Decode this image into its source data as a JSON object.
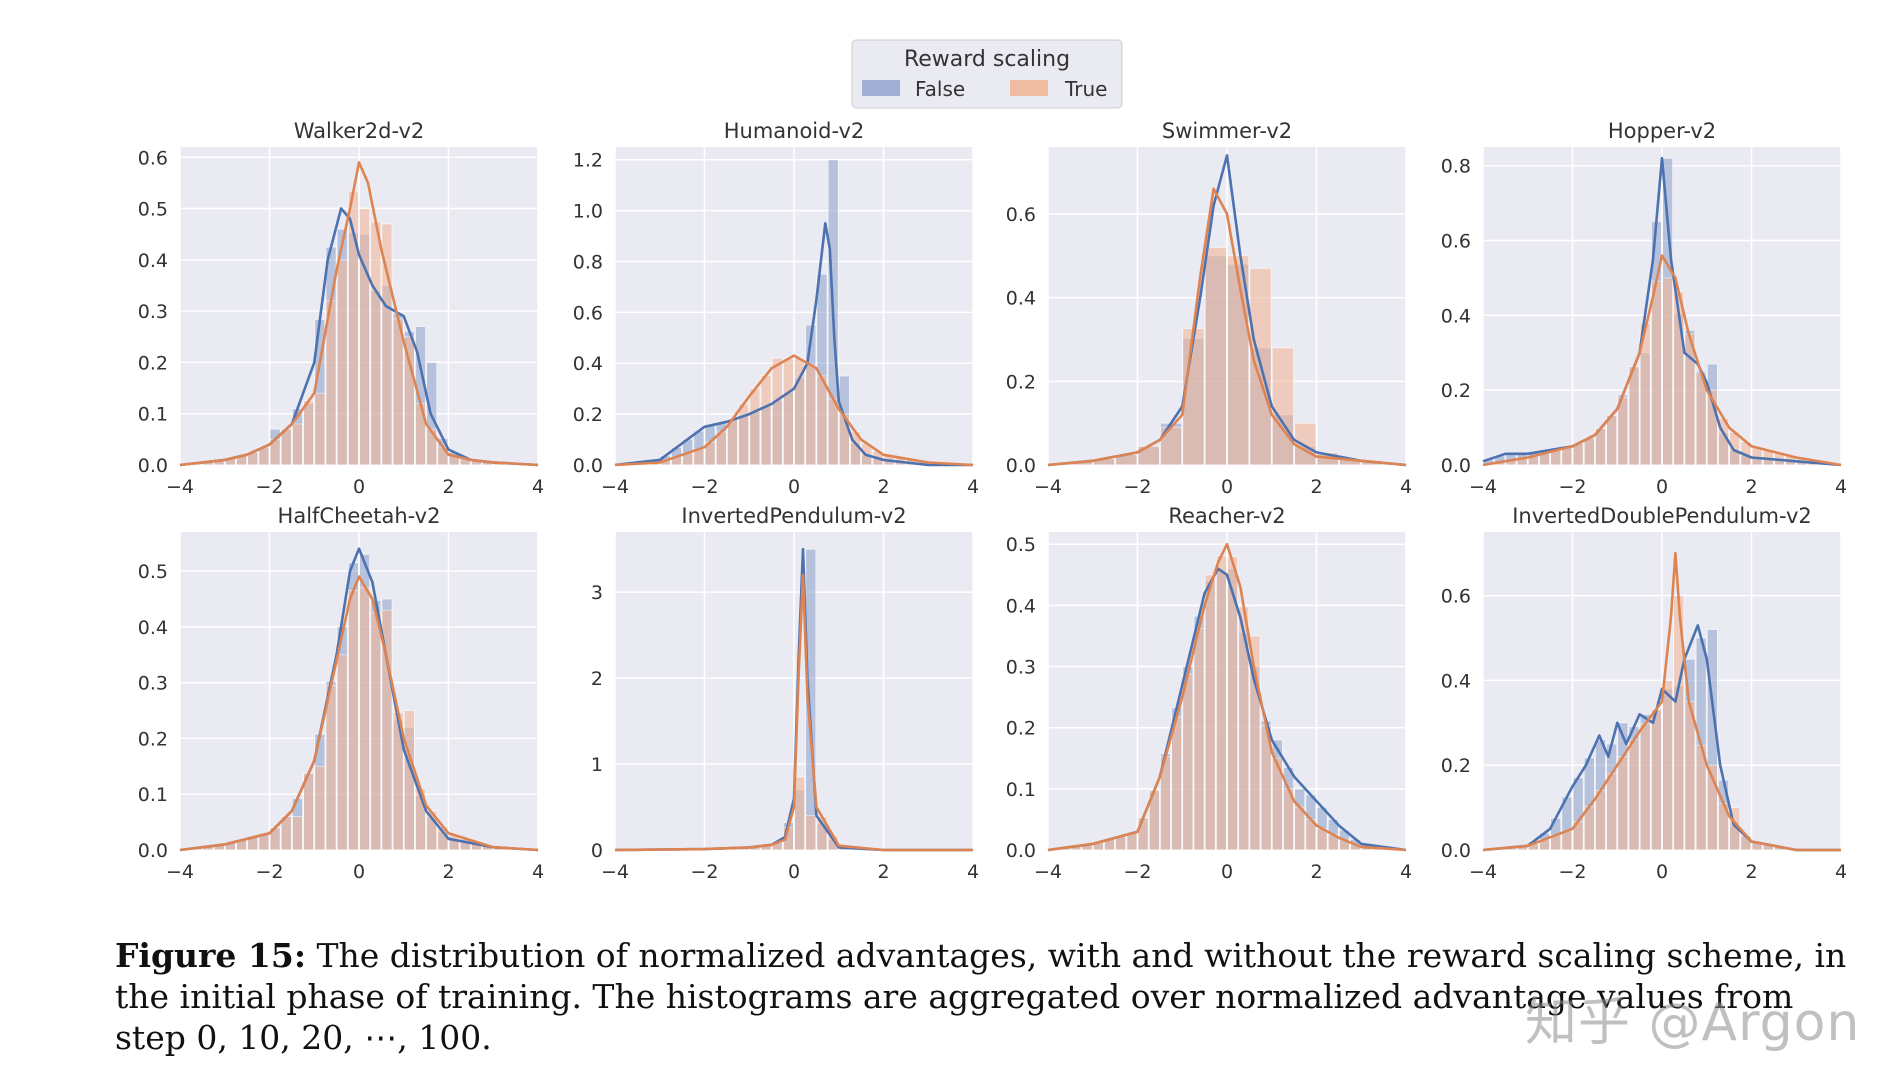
{
  "legend": {
    "title": "Reward scaling",
    "entries": [
      "False",
      "True"
    ]
  },
  "colors": {
    "false_bar": "#8da0cb",
    "false_line": "#4c72b0",
    "true_bar": "#f1b89a",
    "true_line": "#dd8452",
    "panel_bg": "#eaeaf2"
  },
  "caption": {
    "label": "Figure 15:",
    "text": "The distribution of normalized advantages, with and without the reward scaling scheme, in the initial phase of training. The histograms are aggregated over normalized advantage values from step 0, 10, 20, ⋯, 100."
  },
  "watermark": "知乎 @Argon",
  "chart_data": [
    {
      "type": "histogram+kde",
      "title": "Walker2d-v2",
      "xlim": [
        -4,
        4
      ],
      "ylim": [
        0,
        0.62
      ],
      "xticks": [
        -4,
        -2,
        0,
        2,
        4
      ],
      "yticks": [
        0.0,
        0.1,
        0.2,
        0.3,
        0.4,
        0.5,
        0.6
      ],
      "bin_width": 0.25,
      "series": [
        {
          "name": "False",
          "kde_x": [
            -4,
            -3,
            -2.5,
            -2,
            -1.5,
            -1,
            -0.7,
            -0.4,
            -0.2,
            0,
            0.3,
            0.6,
            1,
            1.3,
            1.6,
            2,
            2.5,
            3,
            4
          ],
          "kde_y": [
            0,
            0.01,
            0.02,
            0.04,
            0.08,
            0.2,
            0.4,
            0.5,
            0.48,
            0.41,
            0.35,
            0.31,
            0.29,
            0.22,
            0.1,
            0.03,
            0.01,
            0.005,
            0
          ],
          "bin_x": [
            -2,
            -1.25,
            -0.5,
            0,
            0.5,
            1.25,
            1.5
          ],
          "bin_y": [
            0.07,
            0.12,
            0.46,
            0.45,
            0.35,
            0.27,
            0.2
          ]
        },
        {
          "name": "True",
          "kde_x": [
            -4,
            -3,
            -2.5,
            -2,
            -1.5,
            -1,
            -0.5,
            -0.2,
            0,
            0.2,
            0.5,
            1,
            1.5,
            2,
            2.5,
            3,
            4
          ],
          "kde_y": [
            0,
            0.01,
            0.02,
            0.04,
            0.08,
            0.14,
            0.38,
            0.5,
            0.59,
            0.55,
            0.42,
            0.24,
            0.08,
            0.02,
            0.01,
            0.005,
            0
          ],
          "bin_x": [
            -1.5,
            -1,
            -0.5,
            0,
            0.5,
            1,
            1.5
          ],
          "bin_y": [
            0.08,
            0.14,
            0.4,
            0.5,
            0.47,
            0.25,
            0.07
          ]
        }
      ]
    },
    {
      "type": "histogram+kde",
      "title": "Humanoid-v2",
      "xlim": [
        -4,
        4
      ],
      "ylim": [
        0,
        1.25
      ],
      "xticks": [
        -4,
        -2,
        0,
        2,
        4
      ],
      "yticks": [
        0.0,
        0.2,
        0.4,
        0.6,
        0.8,
        1.0,
        1.2
      ],
      "bin_width": 0.25,
      "series": [
        {
          "name": "False",
          "kde_x": [
            -4,
            -3,
            -2,
            -1.5,
            -1,
            -0.5,
            0,
            0.3,
            0.5,
            0.7,
            0.8,
            0.9,
            1,
            1.3,
            1.6,
            2,
            3,
            4
          ],
          "kde_y": [
            0,
            0.02,
            0.15,
            0.17,
            0.2,
            0.24,
            0.3,
            0.4,
            0.65,
            0.95,
            0.85,
            0.5,
            0.25,
            0.1,
            0.04,
            0.02,
            0,
            0
          ],
          "bin_x": [
            0.7,
            0.5,
            0.25,
            1
          ],
          "bin_y": [
            1.2,
            0.75,
            0.55,
            0.35
          ]
        },
        {
          "name": "True",
          "kde_x": [
            -4,
            -3,
            -2,
            -1.5,
            -1,
            -0.5,
            0,
            0.5,
            1,
            1.5,
            2,
            3,
            4
          ],
          "kde_y": [
            0,
            0.01,
            0.07,
            0.15,
            0.27,
            0.38,
            0.43,
            0.38,
            0.22,
            0.1,
            0.04,
            0.01,
            0
          ],
          "bin_x": [
            -1,
            -0.5,
            0,
            0.5,
            1
          ],
          "bin_y": [
            0.3,
            0.42,
            0.42,
            0.35,
            0.2
          ]
        }
      ]
    },
    {
      "type": "histogram+kde",
      "title": "Swimmer-v2",
      "xlim": [
        -4,
        4
      ],
      "ylim": [
        0,
        0.76
      ],
      "xticks": [
        -4,
        -2,
        0,
        2,
        4
      ],
      "yticks": [
        0.0,
        0.2,
        0.4,
        0.6
      ],
      "bin_width": 0.5,
      "series": [
        {
          "name": "False",
          "kde_x": [
            -4,
            -3,
            -2,
            -1.5,
            -1,
            -0.6,
            -0.3,
            0,
            0.3,
            0.6,
            1,
            1.5,
            2,
            3,
            4
          ],
          "kde_y": [
            0,
            0.01,
            0.03,
            0.06,
            0.14,
            0.4,
            0.62,
            0.74,
            0.5,
            0.3,
            0.14,
            0.06,
            0.03,
            0.01,
            0
          ],
          "bin_x": [
            -0.5,
            0,
            0.5,
            1
          ],
          "bin_y": [
            0.5,
            0.48,
            0.28,
            0.12
          ]
        },
        {
          "name": "True",
          "kde_x": [
            -4,
            -3,
            -2,
            -1.5,
            -1,
            -0.6,
            -0.3,
            0,
            0.3,
            0.6,
            1,
            1.5,
            2,
            3,
            4
          ],
          "kde_y": [
            0,
            0.01,
            0.03,
            0.06,
            0.12,
            0.45,
            0.66,
            0.6,
            0.42,
            0.25,
            0.12,
            0.05,
            0.02,
            0.01,
            0
          ],
          "bin_x": [
            -0.5,
            0,
            0.5,
            1,
            1.5,
            2
          ],
          "bin_y": [
            0.52,
            0.5,
            0.47,
            0.28,
            0.1,
            0.03
          ]
        }
      ]
    },
    {
      "type": "histogram+kde",
      "title": "Hopper-v2",
      "xlim": [
        -4,
        4
      ],
      "ylim": [
        0,
        0.85
      ],
      "xticks": [
        -4,
        -2,
        0,
        2,
        4
      ],
      "yticks": [
        0.0,
        0.2,
        0.4,
        0.6,
        0.8
      ],
      "bin_width": 0.25,
      "series": [
        {
          "name": "False",
          "kde_x": [
            -4,
            -3.5,
            -3,
            -2.5,
            -2,
            -1.5,
            -1,
            -0.5,
            -0.2,
            0,
            0.2,
            0.5,
            0.8,
            1,
            1.3,
            1.6,
            2,
            3,
            4
          ],
          "kde_y": [
            0.01,
            0.03,
            0.03,
            0.04,
            0.05,
            0.08,
            0.15,
            0.3,
            0.55,
            0.82,
            0.55,
            0.3,
            0.27,
            0.22,
            0.1,
            0.04,
            0.02,
            0.01,
            0
          ],
          "bin_x": [
            0,
            0.5,
            1,
            -0.5
          ],
          "bin_y": [
            0.82,
            0.36,
            0.27,
            0.3
          ]
        },
        {
          "name": "True",
          "kde_x": [
            -4,
            -3,
            -2,
            -1.5,
            -1,
            -0.5,
            -0.2,
            0,
            0.3,
            0.6,
            1,
            1.5,
            2,
            3,
            4
          ],
          "kde_y": [
            0,
            0.02,
            0.05,
            0.08,
            0.15,
            0.3,
            0.45,
            0.56,
            0.5,
            0.35,
            0.2,
            0.1,
            0.05,
            0.02,
            0
          ],
          "bin_x": [
            -1,
            -0.5,
            0,
            0.5,
            1
          ],
          "bin_y": [
            0.18,
            0.38,
            0.5,
            0.35,
            0.2
          ]
        }
      ]
    },
    {
      "type": "histogram+kde",
      "title": "HalfCheetah-v2",
      "xlim": [
        -4,
        4
      ],
      "ylim": [
        0,
        0.57
      ],
      "xticks": [
        -4,
        -2,
        0,
        2,
        4
      ],
      "yticks": [
        0.0,
        0.1,
        0.2,
        0.3,
        0.4,
        0.5
      ],
      "bin_width": 0.25,
      "series": [
        {
          "name": "False",
          "kde_x": [
            -4,
            -3,
            -2,
            -1.5,
            -1,
            -0.5,
            -0.2,
            0,
            0.3,
            0.6,
            1,
            1.5,
            2,
            3,
            4
          ],
          "kde_y": [
            0,
            0.01,
            0.03,
            0.07,
            0.16,
            0.35,
            0.5,
            0.54,
            0.48,
            0.35,
            0.18,
            0.07,
            0.02,
            0.005,
            0
          ],
          "bin_x": [
            -0.5,
            0,
            0.5,
            1
          ],
          "bin_y": [
            0.4,
            0.53,
            0.45,
            0.22
          ]
        },
        {
          "name": "True",
          "kde_x": [
            -4,
            -3,
            -2,
            -1.5,
            -1,
            -0.5,
            -0.2,
            0,
            0.3,
            0.6,
            1,
            1.5,
            2,
            3,
            4
          ],
          "kde_y": [
            0,
            0.01,
            0.03,
            0.07,
            0.16,
            0.34,
            0.45,
            0.49,
            0.45,
            0.35,
            0.2,
            0.08,
            0.03,
            0.005,
            0
          ],
          "bin_x": [
            -1.5,
            -1,
            -0.5,
            0,
            0.5,
            1,
            1.5
          ],
          "bin_y": [
            0.06,
            0.15,
            0.35,
            0.47,
            0.43,
            0.25,
            0.07
          ]
        }
      ]
    },
    {
      "type": "histogram+kde",
      "title": "InvertedPendulum-v2",
      "xlim": [
        -4,
        4
      ],
      "ylim": [
        0,
        3.7
      ],
      "xticks": [
        -4,
        -2,
        0,
        2,
        4
      ],
      "yticks": [
        0,
        1,
        2,
        3
      ],
      "bin_width": 0.25,
      "series": [
        {
          "name": "False",
          "kde_x": [
            -4,
            -2,
            -1,
            -0.5,
            -0.2,
            0,
            0.1,
            0.2,
            0.3,
            0.5,
            1,
            2,
            4
          ],
          "kde_y": [
            0,
            0.01,
            0.03,
            0.06,
            0.15,
            0.6,
            2.2,
            3.5,
            2,
            0.4,
            0.03,
            0,
            0
          ],
          "bin_x": [
            0.2,
            0
          ],
          "bin_y": [
            3.5,
            0.7
          ]
        },
        {
          "name": "True",
          "kde_x": [
            -4,
            -2,
            -1,
            -0.5,
            -0.2,
            0,
            0.1,
            0.2,
            0.3,
            0.5,
            1,
            2,
            4
          ],
          "kde_y": [
            0,
            0.01,
            0.03,
            0.06,
            0.12,
            0.5,
            2,
            3.2,
            1.8,
            0.5,
            0.05,
            0,
            0
          ],
          "bin_x": [
            0.1,
            -0.1,
            0.35
          ],
          "bin_y": [
            2.2,
            0.85,
            0.4
          ]
        }
      ]
    },
    {
      "type": "histogram+kde",
      "title": "Reacher-v2",
      "xlim": [
        -4,
        4
      ],
      "ylim": [
        0,
        0.52
      ],
      "xticks": [
        -4,
        -2,
        0,
        2,
        4
      ],
      "yticks": [
        0.0,
        0.1,
        0.2,
        0.3,
        0.4,
        0.5
      ],
      "bin_width": 0.25,
      "series": [
        {
          "name": "False",
          "kde_x": [
            -4,
            -3,
            -2,
            -1.5,
            -1,
            -0.5,
            -0.2,
            0,
            0.3,
            0.6,
            1,
            1.5,
            2,
            2.5,
            3,
            4
          ],
          "kde_y": [
            0,
            0.01,
            0.03,
            0.12,
            0.27,
            0.42,
            0.46,
            0.45,
            0.38,
            0.28,
            0.18,
            0.12,
            0.08,
            0.04,
            0.01,
            0
          ],
          "bin_x": [
            -1,
            -0.5,
            0,
            0.5,
            1,
            1.5
          ],
          "bin_y": [
            0.3,
            0.44,
            0.46,
            0.3,
            0.18,
            0.1
          ]
        },
        {
          "name": "True",
          "kde_x": [
            -4,
            -3,
            -2,
            -1.5,
            -1,
            -0.5,
            -0.2,
            0,
            0.3,
            0.6,
            1,
            1.5,
            2,
            2.5,
            3,
            4
          ],
          "kde_y": [
            0,
            0.01,
            0.03,
            0.12,
            0.25,
            0.4,
            0.47,
            0.5,
            0.43,
            0.3,
            0.16,
            0.08,
            0.04,
            0.02,
            0.005,
            0
          ],
          "bin_x": [
            -0.5,
            0,
            0.5,
            1
          ],
          "bin_y": [
            0.45,
            0.48,
            0.35,
            0.15
          ]
        }
      ]
    },
    {
      "type": "histogram+kde",
      "title": "InvertedDoublePendulum-v2",
      "xlim": [
        -4,
        4
      ],
      "ylim": [
        0,
        0.75
      ],
      "xticks": [
        -4,
        -2,
        0,
        2,
        4
      ],
      "yticks": [
        0.0,
        0.2,
        0.4,
        0.6
      ],
      "bin_width": 0.25,
      "series": [
        {
          "name": "False",
          "kde_x": [
            -4,
            -3,
            -2.5,
            -2,
            -1.7,
            -1.4,
            -1.2,
            -1,
            -0.8,
            -0.5,
            -0.2,
            0,
            0.3,
            0.5,
            0.8,
            1,
            1.3,
            1.6,
            2,
            3,
            4
          ],
          "kde_y": [
            0,
            0.01,
            0.05,
            0.15,
            0.2,
            0.27,
            0.22,
            0.3,
            0.25,
            0.32,
            0.3,
            0.38,
            0.35,
            0.45,
            0.53,
            0.45,
            0.2,
            0.06,
            0.02,
            0,
            0
          ],
          "bin_x": [
            -1.5,
            -1,
            -0.5,
            0,
            0.5,
            1
          ],
          "bin_y": [
            0.26,
            0.3,
            0.32,
            0.38,
            0.45,
            0.52
          ]
        },
        {
          "name": "True",
          "kde_x": [
            -4,
            -3,
            -2,
            -1.5,
            -1,
            -0.5,
            0,
            0.2,
            0.3,
            0.4,
            0.6,
            1,
            1.5,
            2,
            3,
            4
          ],
          "kde_y": [
            0,
            0.01,
            0.05,
            0.12,
            0.2,
            0.28,
            0.35,
            0.55,
            0.7,
            0.55,
            0.35,
            0.2,
            0.08,
            0.02,
            0,
            0
          ],
          "bin_x": [
            0,
            0.25,
            0.5,
            1,
            1.5
          ],
          "bin_y": [
            0.4,
            0.6,
            0.35,
            0.2,
            0.1
          ]
        }
      ]
    }
  ]
}
